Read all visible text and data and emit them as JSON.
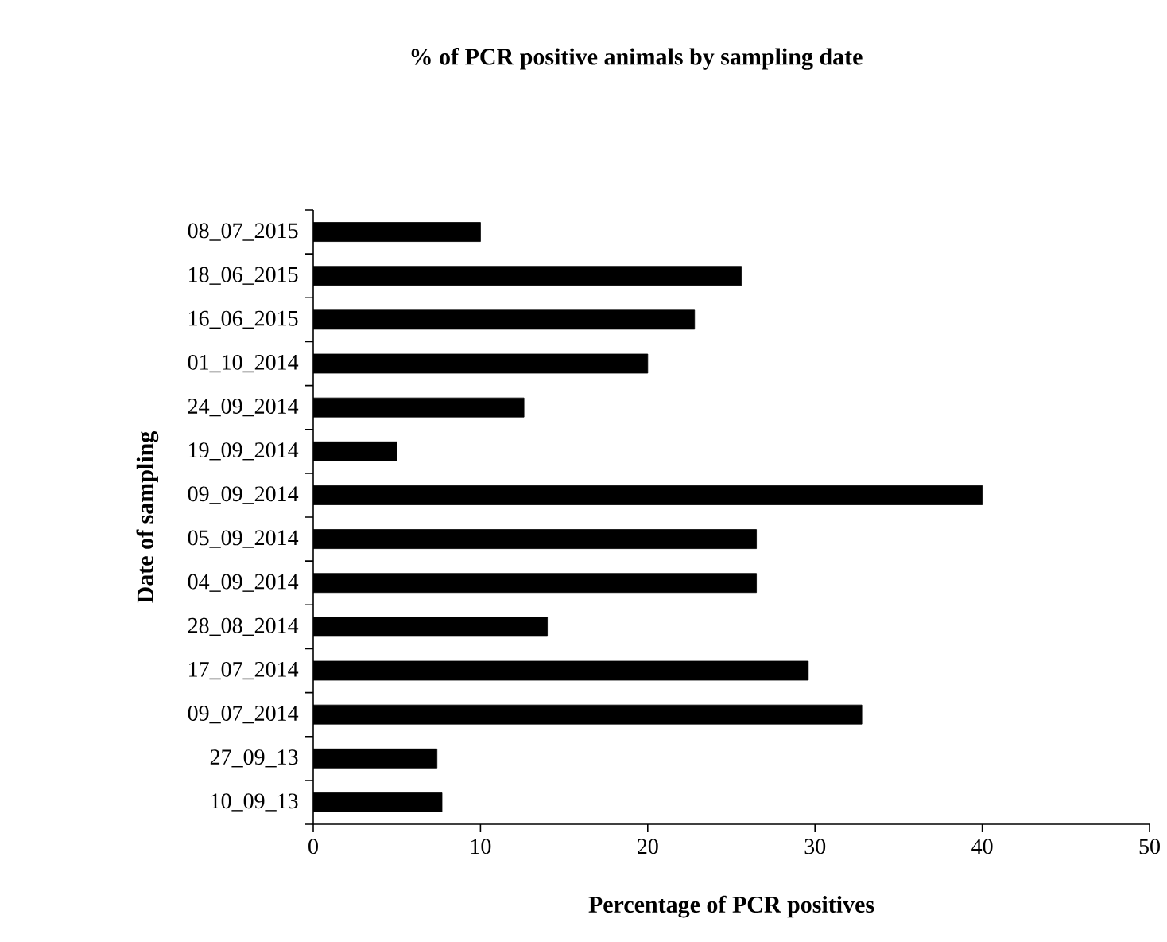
{
  "chart_data": {
    "type": "bar",
    "orientation": "horizontal",
    "title": "% of PCR positive animals by sampling date",
    "xlabel": "Percentage of PCR positives",
    "ylabel": "Date of sampling",
    "categories": [
      "08_07_2015",
      "18_06_2015",
      "16_06_2015",
      "01_10_2014",
      "24_09_2014",
      "19_09_2014",
      "09_09_2014",
      "05_09_2014",
      "04_09_2014",
      "28_08_2014",
      "17_07_2014",
      "09_07_2014",
      "27_09_13",
      "10_09_13"
    ],
    "values": [
      10.0,
      25.6,
      22.8,
      20.0,
      12.6,
      5.0,
      40.0,
      26.5,
      26.5,
      14.0,
      29.6,
      32.8,
      7.4,
      7.7
    ],
    "color": "#000000",
    "xlim": [
      0,
      50
    ],
    "xticks": [
      0,
      10,
      20,
      30,
      40,
      50
    ],
    "grid": false
  }
}
